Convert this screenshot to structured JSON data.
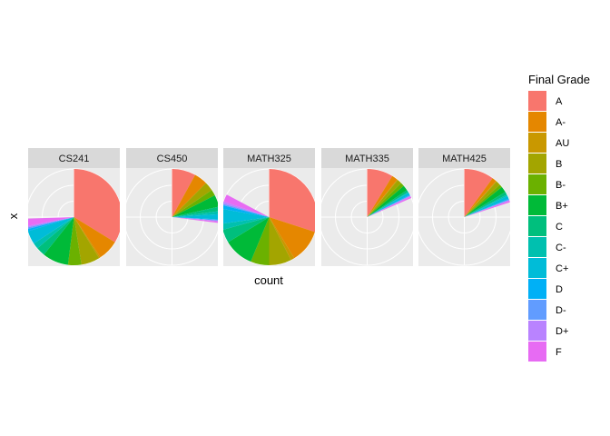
{
  "chart_data": {
    "type": "pie",
    "xlabel": "count",
    "ylabel": "x",
    "legend": {
      "title": "Final Grade",
      "position": "right",
      "entries": [
        "A",
        "A-",
        "AU",
        "B",
        "B-",
        "B+",
        "C",
        "C-",
        "C+",
        "D",
        "D-",
        "D+",
        "F"
      ]
    },
    "colors": [
      "#F8766D",
      "#E58700",
      "#C99800",
      "#A3A500",
      "#6BB100",
      "#00BA38",
      "#00BF7D",
      "#00C0AF",
      "#00BCD8",
      "#00B0F6",
      "#619CFF",
      "#B983FF",
      "#E76BF3",
      "#FD61D1",
      "#FF67A4"
    ],
    "radial_axis": {
      "ticks": [
        0,
        100,
        200,
        300
      ],
      "max": 400
    },
    "grid": true,
    "facets": [
      {
        "name": "CS241",
        "slices": [
          {
            "grade": "A",
            "count": 135
          },
          {
            "grade": "A-",
            "count": 28
          },
          {
            "grade": "AU",
            "count": 2
          },
          {
            "grade": "B",
            "count": 25
          },
          {
            "grade": "B-",
            "count": 18
          },
          {
            "grade": "B+",
            "count": 35
          },
          {
            "grade": "C",
            "count": 12
          },
          {
            "grade": "C-",
            "count": 8
          },
          {
            "grade": "C+",
            "count": 18
          },
          {
            "grade": "D",
            "count": 3
          },
          {
            "grade": "D-",
            "count": 2
          },
          {
            "grade": "D+",
            "count": 2
          },
          {
            "grade": "F",
            "count": 10
          }
        ]
      },
      {
        "name": "CS450",
        "slices": [
          {
            "grade": "A",
            "count": 32
          },
          {
            "grade": "A-",
            "count": 18
          },
          {
            "grade": "AU",
            "count": 0
          },
          {
            "grade": "B",
            "count": 12
          },
          {
            "grade": "B-",
            "count": 8
          },
          {
            "grade": "B+",
            "count": 16
          },
          {
            "grade": "C",
            "count": 6
          },
          {
            "grade": "C-",
            "count": 4
          },
          {
            "grade": "C+",
            "count": 7
          },
          {
            "grade": "D",
            "count": 1
          },
          {
            "grade": "D-",
            "count": 1
          },
          {
            "grade": "D+",
            "count": 1
          },
          {
            "grade": "F",
            "count": 2
          }
        ]
      },
      {
        "name": "MATH325",
        "slices": [
          {
            "grade": "A",
            "count": 120
          },
          {
            "grade": "A-",
            "count": 45
          },
          {
            "grade": "AU",
            "count": 5
          },
          {
            "grade": "B",
            "count": 30
          },
          {
            "grade": "B-",
            "count": 25
          },
          {
            "grade": "B+",
            "count": 40
          },
          {
            "grade": "C",
            "count": 18
          },
          {
            "grade": "C-",
            "count": 8
          },
          {
            "grade": "C+",
            "count": 20
          },
          {
            "grade": "D",
            "count": 5
          },
          {
            "grade": "D-",
            "count": 2
          },
          {
            "grade": "D+",
            "count": 3
          },
          {
            "grade": "F",
            "count": 10
          }
        ]
      },
      {
        "name": "MATH335",
        "slices": [
          {
            "grade": "A",
            "count": 35
          },
          {
            "grade": "A-",
            "count": 8
          },
          {
            "grade": "AU",
            "count": 1
          },
          {
            "grade": "B",
            "count": 6
          },
          {
            "grade": "B-",
            "count": 5
          },
          {
            "grade": "B+",
            "count": 7
          },
          {
            "grade": "C",
            "count": 3
          },
          {
            "grade": "C-",
            "count": 1
          },
          {
            "grade": "C+",
            "count": 3
          },
          {
            "grade": "D",
            "count": 1
          },
          {
            "grade": "D-",
            "count": 1
          },
          {
            "grade": "D+",
            "count": 1
          },
          {
            "grade": "F",
            "count": 2
          }
        ]
      },
      {
        "name": "MATH425",
        "slices": [
          {
            "grade": "A",
            "count": 40
          },
          {
            "grade": "A-",
            "count": 6
          },
          {
            "grade": "AU",
            "count": 1
          },
          {
            "grade": "B",
            "count": 6
          },
          {
            "grade": "B-",
            "count": 4
          },
          {
            "grade": "B+",
            "count": 8
          },
          {
            "grade": "C",
            "count": 4
          },
          {
            "grade": "C-",
            "count": 2
          },
          {
            "grade": "C+",
            "count": 4
          },
          {
            "grade": "D",
            "count": 1
          },
          {
            "grade": "D-",
            "count": 1
          },
          {
            "grade": "D+",
            "count": 1
          },
          {
            "grade": "F",
            "count": 2
          }
        ]
      }
    ]
  }
}
